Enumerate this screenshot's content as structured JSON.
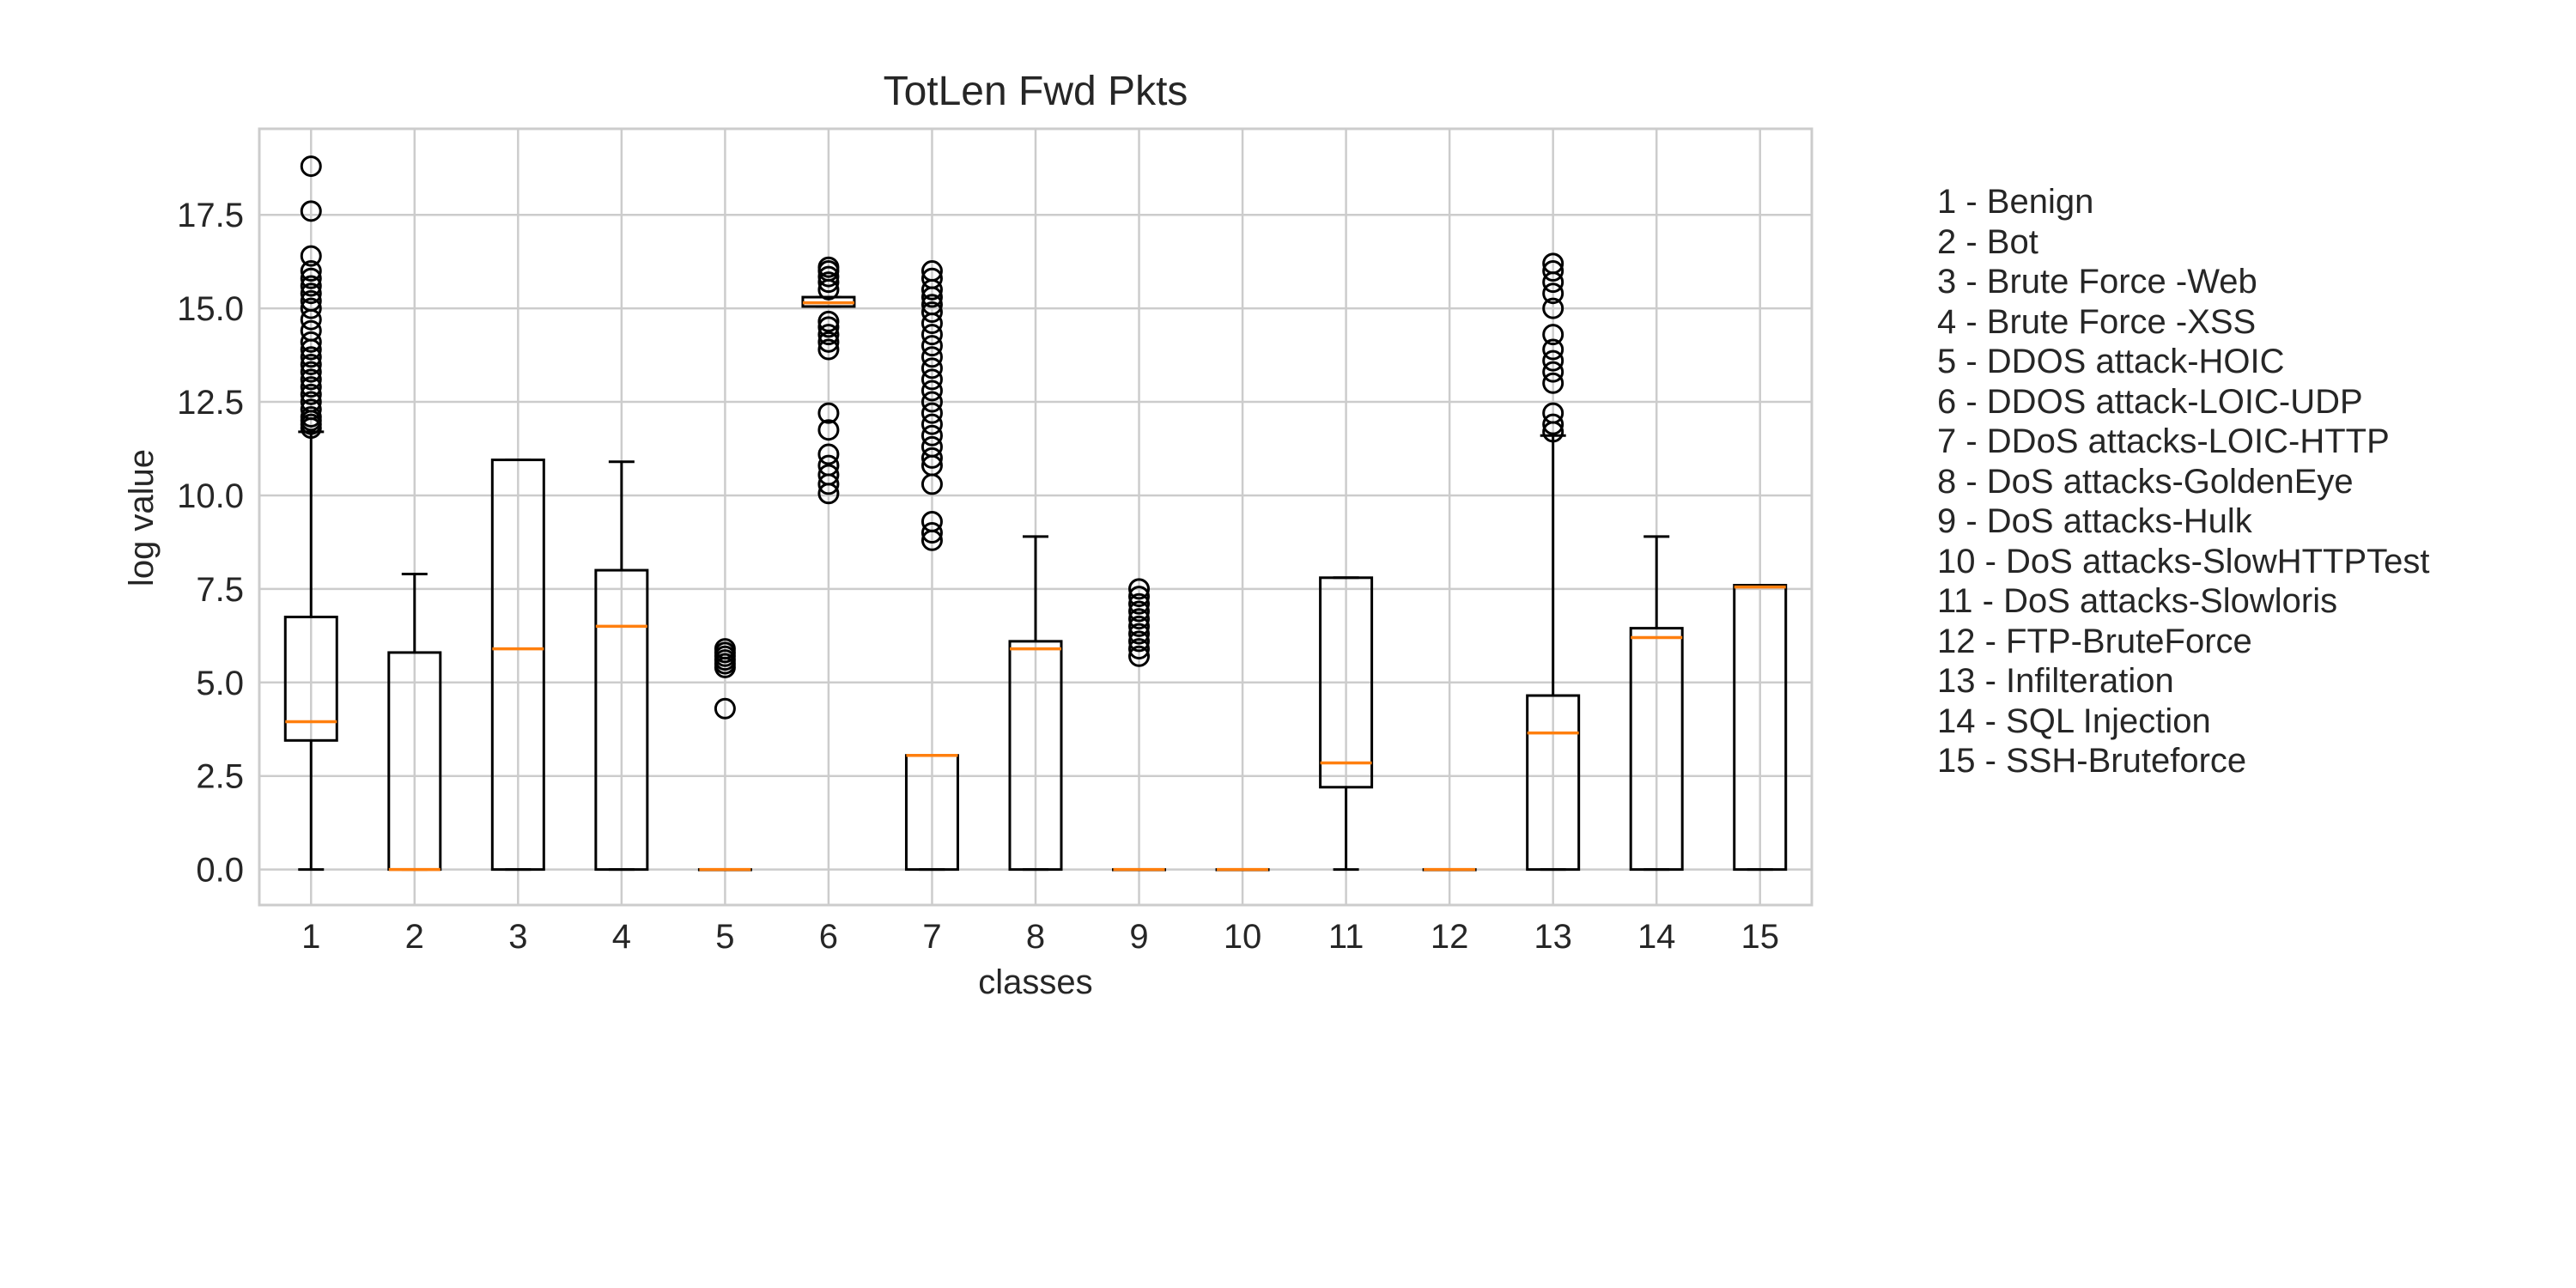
{
  "chart_data": {
    "type": "box",
    "title": "TotLen Fwd Pkts",
    "xlabel": "classes",
    "ylabel": "log value",
    "ylim": [
      -0.95,
      19.8
    ],
    "yticks": [
      "0.0",
      "2.5",
      "5.0",
      "7.5",
      "10.0",
      "12.5",
      "15.0",
      "17.5"
    ],
    "categories": [
      "1",
      "2",
      "3",
      "4",
      "5",
      "6",
      "7",
      "8",
      "9",
      "10",
      "11",
      "12",
      "13",
      "14",
      "15"
    ],
    "grid": true,
    "legend_position": "right",
    "colors": {
      "box": "#000000",
      "median": "#ff7f0e",
      "grid": "#cccccc",
      "text": "#262626"
    },
    "boxes": [
      {
        "class": "1",
        "whislo": 0.0,
        "q1": 3.45,
        "med": 3.95,
        "q3": 6.75,
        "whishi": 11.7,
        "fliers": [
          11.8,
          11.9,
          12.0,
          12.1,
          12.3,
          12.5,
          12.7,
          12.9,
          13.1,
          13.3,
          13.5,
          13.7,
          13.9,
          14.1,
          14.4,
          14.7,
          15.0,
          15.2,
          15.4,
          15.6,
          15.8,
          16.0,
          16.4,
          17.6,
          18.8
        ]
      },
      {
        "class": "2",
        "whislo": 0.0,
        "q1": 0.0,
        "med": 0.0,
        "q3": 5.8,
        "whishi": 7.9,
        "fliers": []
      },
      {
        "class": "3",
        "whislo": 0.0,
        "q1": 0.0,
        "med": 5.9,
        "q3": 10.95,
        "whishi": 10.95,
        "fliers": []
      },
      {
        "class": "4",
        "whislo": 0.0,
        "q1": 0.0,
        "med": 6.5,
        "q3": 8.0,
        "whishi": 10.9,
        "fliers": []
      },
      {
        "class": "5",
        "whislo": 0.0,
        "q1": 0.0,
        "med": 0.0,
        "q3": 0.0,
        "whishi": 0.0,
        "fliers": [
          4.3,
          5.4,
          5.5,
          5.6,
          5.7,
          5.8,
          5.9
        ]
      },
      {
        "class": "6",
        "whislo": 15.05,
        "q1": 15.05,
        "med": 15.15,
        "q3": 15.3,
        "whishi": 15.3,
        "fliers": [
          10.05,
          10.3,
          10.55,
          10.8,
          11.1,
          11.75,
          12.2,
          13.9,
          14.1,
          14.3,
          14.5,
          14.65,
          15.5,
          15.7,
          15.85,
          16.0,
          16.1
        ]
      },
      {
        "class": "7",
        "whislo": 0.0,
        "q1": 0.0,
        "med": 3.05,
        "q3": 3.05,
        "whishi": 3.05,
        "fliers": [
          8.8,
          9.0,
          9.3,
          10.3,
          10.8,
          11.0,
          11.3,
          11.6,
          11.9,
          12.2,
          12.5,
          12.8,
          13.1,
          13.4,
          13.7,
          14.0,
          14.3,
          14.6,
          14.9,
          15.1,
          15.3,
          15.5,
          15.8,
          16.0
        ]
      },
      {
        "class": "8",
        "whislo": 0.0,
        "q1": 0.0,
        "med": 5.9,
        "q3": 6.1,
        "whishi": 8.9,
        "fliers": []
      },
      {
        "class": "9",
        "whislo": 0.0,
        "q1": 0.0,
        "med": 0.0,
        "q3": 0.0,
        "whishi": 0.0,
        "fliers": [
          5.7,
          5.9,
          6.1,
          6.3,
          6.5,
          6.7,
          6.9,
          7.1,
          7.3,
          7.5
        ]
      },
      {
        "class": "10",
        "whislo": 0.0,
        "q1": 0.0,
        "med": 0.0,
        "q3": 0.0,
        "whishi": 0.0,
        "fliers": []
      },
      {
        "class": "11",
        "whislo": 0.0,
        "q1": 2.2,
        "med": 2.85,
        "q3": 7.8,
        "whishi": 7.8,
        "fliers": []
      },
      {
        "class": "12",
        "whislo": 0.0,
        "q1": 0.0,
        "med": 0.0,
        "q3": 0.0,
        "whishi": 0.0,
        "fliers": []
      },
      {
        "class": "13",
        "whislo": 0.0,
        "q1": 0.0,
        "med": 3.65,
        "q3": 4.65,
        "whishi": 11.6,
        "fliers": [
          11.7,
          11.9,
          12.2,
          13.0,
          13.3,
          13.6,
          13.9,
          14.3,
          15.0,
          15.4,
          15.7,
          16.0,
          16.2
        ]
      },
      {
        "class": "14",
        "whislo": 0.0,
        "q1": 0.0,
        "med": 6.2,
        "q3": 6.45,
        "whishi": 8.9,
        "fliers": []
      },
      {
        "class": "15",
        "whislo": 0.0,
        "q1": 0.0,
        "med": 7.55,
        "q3": 7.6,
        "whishi": 7.6,
        "fliers": []
      }
    ]
  },
  "legend": {
    "entries": [
      "1 - Benign",
      "2 - Bot",
      "3 - Brute Force -Web",
      "4 - Brute Force -XSS",
      "5 - DDOS attack-HOIC",
      "6 - DDOS attack-LOIC-UDP",
      "7 - DDoS attacks-LOIC-HTTP",
      "8 - DoS attacks-GoldenEye",
      "9 - DoS attacks-Hulk",
      "10 - DoS attacks-SlowHTTPTest",
      "11 - DoS attacks-Slowloris",
      "12 - FTP-BruteForce",
      "13 - Infilteration",
      "14 - SQL Injection",
      "15 - SSH-Bruteforce"
    ]
  }
}
